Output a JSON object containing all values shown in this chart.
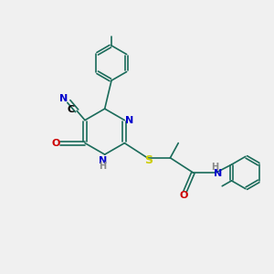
{
  "bg_color": "#f0f0f0",
  "bond_color": "#1a6b5a",
  "bond_width": 1.2,
  "atom_colors": {
    "N": "#0000cc",
    "O": "#cc0000",
    "S": "#cccc00",
    "C": "#000000",
    "H": "#888888"
  },
  "font_size_atom": 8,
  "font_size_small": 7
}
